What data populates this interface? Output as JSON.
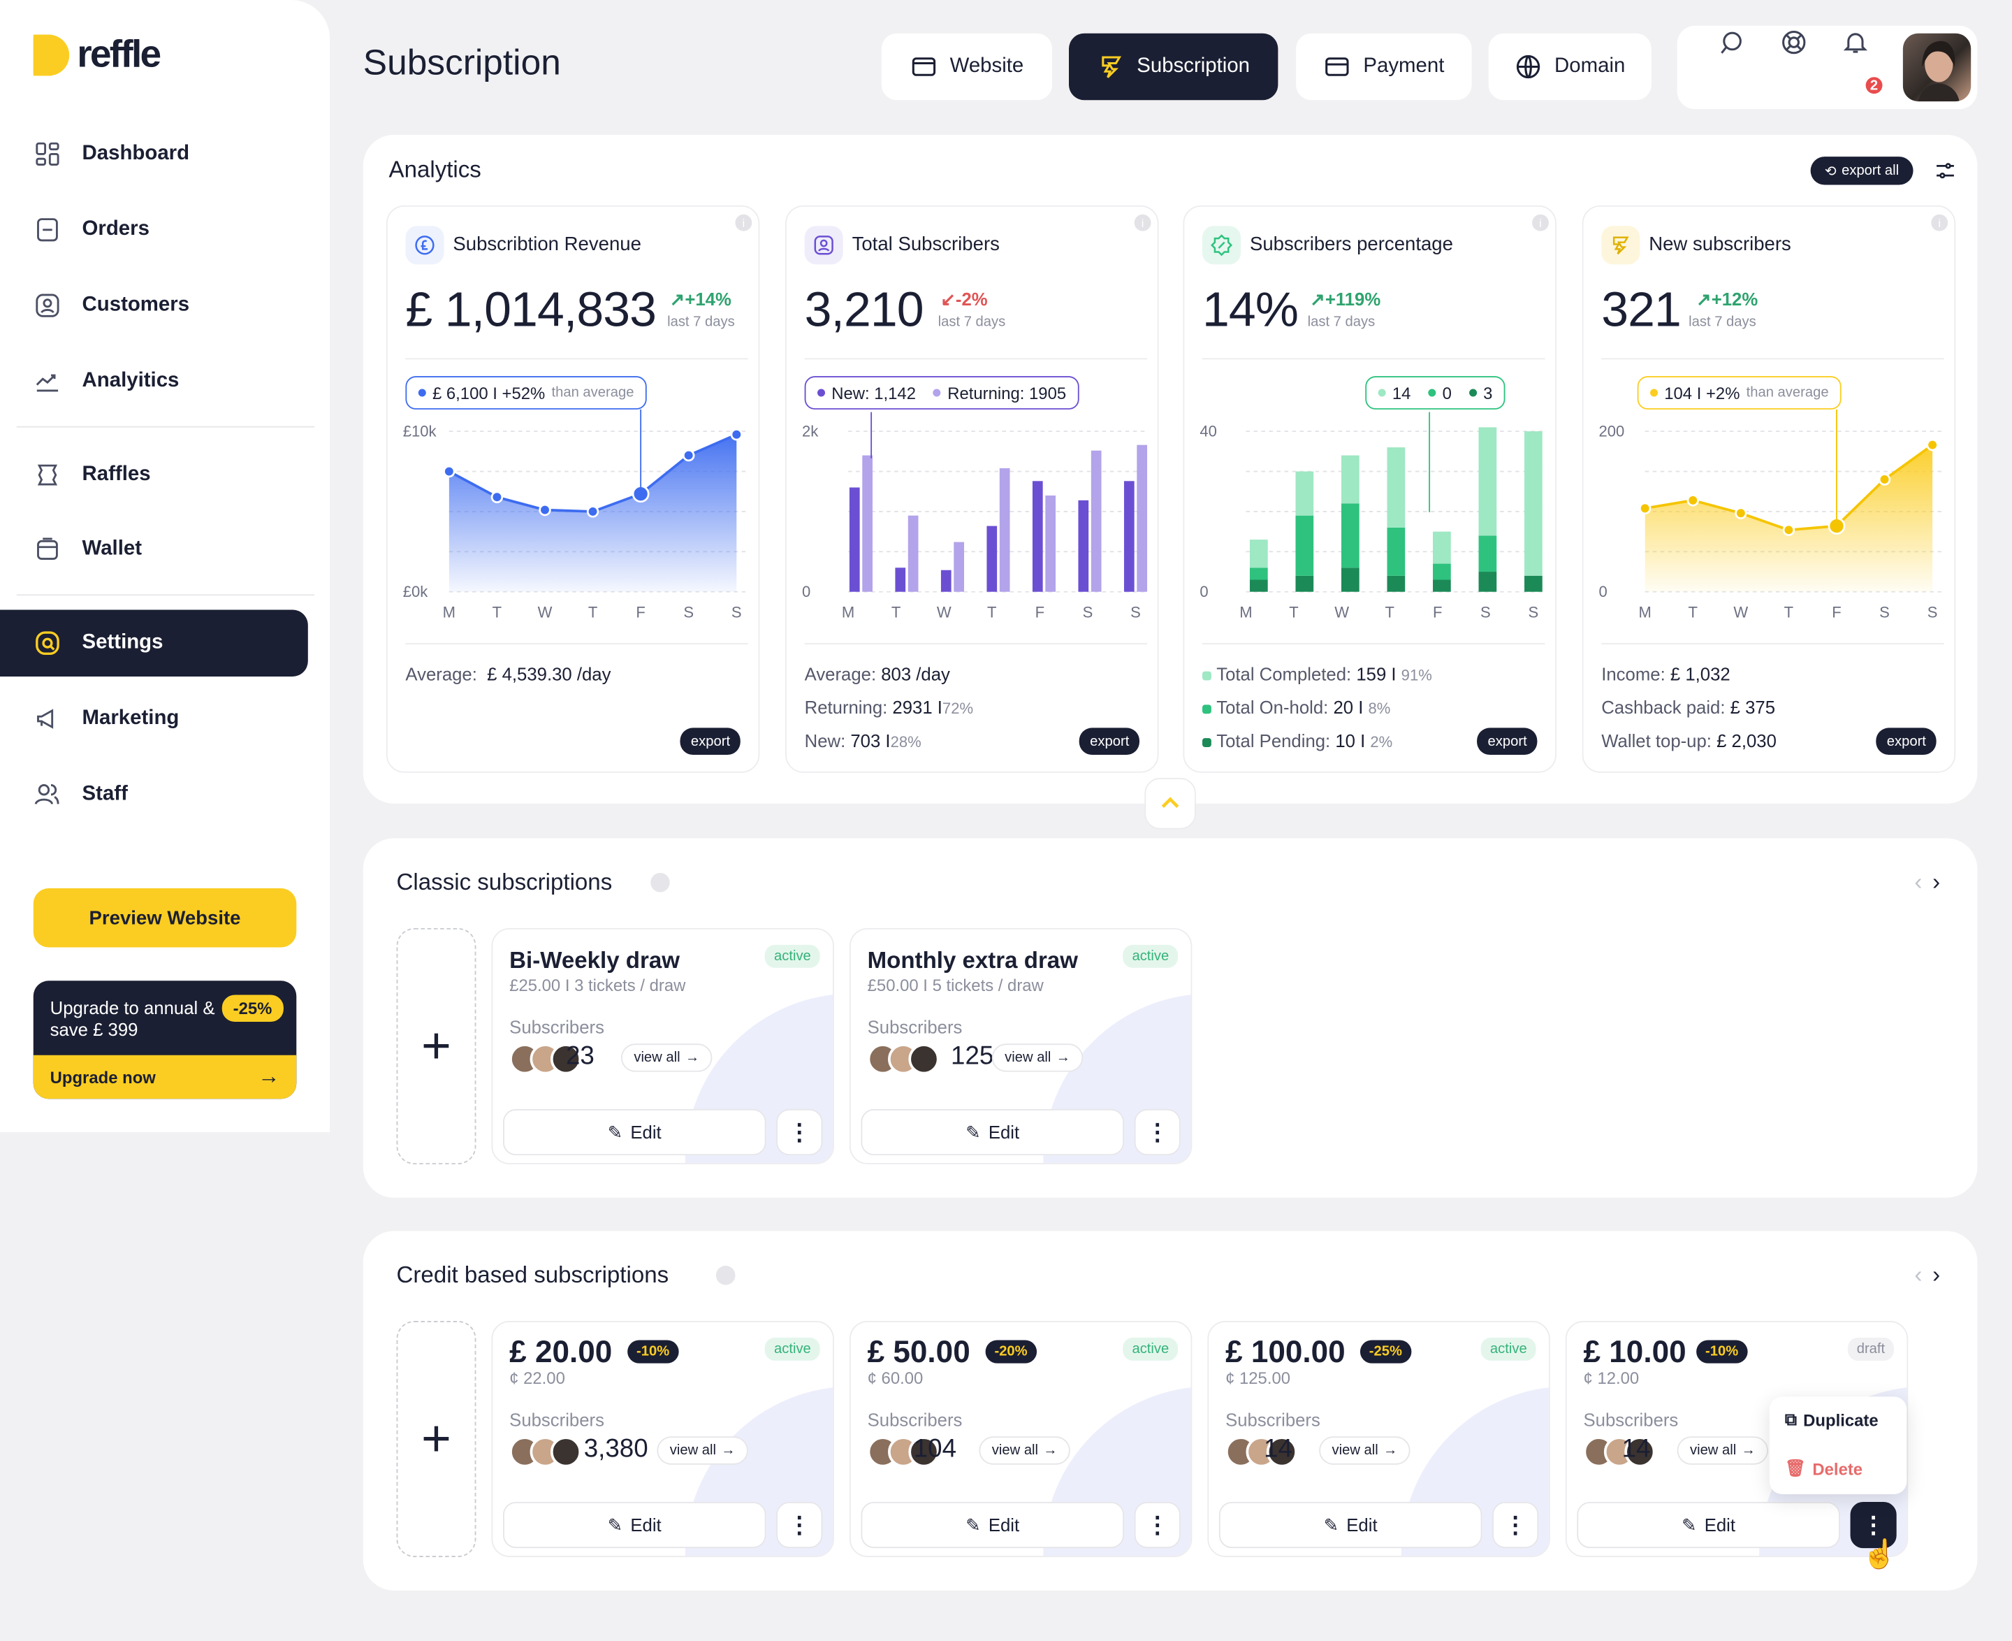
{
  "brand": {
    "name": "reffle"
  },
  "nav": {
    "items": [
      "Dashboard",
      "Orders",
      "Customers",
      "Analyitics",
      "Raffles",
      "Wallet",
      "Settings",
      "Marketing",
      "Staff"
    ],
    "active": "Settings"
  },
  "sidebar": {
    "preview": "Preview Website",
    "upgrade_text": "Upgrade to annual & save £ 399",
    "upgrade_badge": "-25%",
    "upgrade_cta": "Upgrade now"
  },
  "header": {
    "title": "Subscription",
    "tabs": [
      "Website",
      "Subscription",
      "Payment",
      "Domain"
    ],
    "active_tab": "Subscription",
    "notifications": "2"
  },
  "analytics": {
    "title": "Analytics",
    "export_all": "export all",
    "export": "export",
    "cards": [
      {
        "title": "Subscribtion Revenue",
        "value": "£ 1,014,833",
        "change": "+14%",
        "period": "last 7 days",
        "tooltip_value": "£ 6,100 I +52%",
        "tooltip_suffix": "than average",
        "stat1_label": "Average:",
        "stat1_value": "£ 4,539.30 /day"
      },
      {
        "title": "Total Subscribers",
        "value": "3,210",
        "change": "-2%",
        "period": "last 7 days",
        "legend_new": "New: 1,142",
        "legend_ret": "Returning: 1905",
        "avg_label": "Average:",
        "avg_value": "803 /day",
        "ret_label": "Returning:",
        "ret_value": "2931 I",
        "ret_pct": "72%",
        "new_label": "New:",
        "new_value": "703 I",
        "new_pct": "28%"
      },
      {
        "title": "Subscribers percentage",
        "value": "14%",
        "change": "+119%",
        "period": "last 7 days",
        "leg_a": "14",
        "leg_b": "0",
        "leg_c": "3",
        "tc_label": "Total Completed:",
        "tc_value": "159 I",
        "tc_pct": "91%",
        "th_label": "Total On-hold:",
        "th_value": "20 I",
        "th_pct": "8%",
        "tp_label": "Total Pending:",
        "tp_value": "10 I",
        "tp_pct": "2%"
      },
      {
        "title": "New subscribers",
        "value": "321",
        "change": "+12%",
        "period": "last 7 days",
        "tooltip_value": "104 I +2%",
        "tooltip_suffix": "than average",
        "inc_label": "Income:",
        "inc_value": "£ 1,032",
        "cb_label": "Cashback paid:",
        "cb_value": "£ 375",
        "wt_label": "Wallet top-up:",
        "wt_value": "£ 2,030"
      }
    ]
  },
  "chart_data": [
    {
      "type": "area",
      "title": "Subscribtion Revenue",
      "x": [
        "M",
        "T",
        "W",
        "T",
        "F",
        "S",
        "S"
      ],
      "values": [
        7500,
        5900,
        5100,
        5000,
        6100,
        8500,
        9800
      ],
      "ylim": [
        0,
        10000
      ],
      "ytick_labels": [
        "£10k",
        "£0k"
      ]
    },
    {
      "type": "bar",
      "title": "Total Subscribers",
      "categories": [
        "M",
        "T",
        "W",
        "T",
        "F",
        "S",
        "S"
      ],
      "series": [
        {
          "name": "New",
          "values": [
            1300,
            300,
            270,
            820,
            1380,
            1140,
            1380
          ]
        },
        {
          "name": "Returning",
          "values": [
            1700,
            950,
            620,
            1540,
            1200,
            1760,
            1830
          ]
        }
      ],
      "ylim": [
        0,
        2000
      ],
      "ytick_labels": [
        "2k",
        "0"
      ]
    },
    {
      "type": "bar",
      "title": "Subscribers percentage",
      "categories": [
        "M",
        "T",
        "W",
        "T",
        "F",
        "S",
        "S"
      ],
      "series": [
        {
          "name": "",
          "values": [
            3,
            4,
            6,
            4,
            3,
            5,
            4
          ]
        },
        {
          "name": "",
          "values": [
            3,
            15,
            16,
            12,
            4,
            9,
            0
          ]
        },
        {
          "name": "",
          "values": [
            7,
            11,
            12,
            20,
            8,
            27,
            36
          ]
        }
      ],
      "ylim": [
        0,
        40
      ],
      "ytick_labels": [
        "40",
        "0"
      ]
    },
    {
      "type": "area",
      "title": "New subscribers",
      "x": [
        "M",
        "T",
        "W",
        "T",
        "F",
        "S",
        "S"
      ],
      "values": [
        104,
        114,
        98,
        77,
        82,
        140,
        183
      ],
      "ylim": [
        0,
        200
      ],
      "ytick_labels": [
        "200",
        "0"
      ]
    }
  ],
  "classic": {
    "title": "Classic subscriptions",
    "items": [
      {
        "name": "Bi-Weekly draw",
        "sub": "£25.00 I 3 tickets / draw",
        "status": "active",
        "subs_label": "Subscribers",
        "count": "23",
        "view": "view all",
        "edit": "Edit"
      },
      {
        "name": "Monthly extra draw",
        "sub": "£50.00 I 5 tickets / draw",
        "status": "active",
        "subs_label": "Subscribers",
        "count": "125",
        "view": "view all",
        "edit": "Edit"
      }
    ]
  },
  "credit": {
    "title": "Credit based subscriptions",
    "items": [
      {
        "price": "£ 20.00",
        "disc": "-10%",
        "sub": "¢ 22.00",
        "status": "active",
        "subs_label": "Subscribers",
        "count": "3,380",
        "view": "view all",
        "edit": "Edit"
      },
      {
        "price": "£ 50.00",
        "disc": "-20%",
        "sub": "¢ 60.00",
        "status": "active",
        "subs_label": "Subscribers",
        "count": "104",
        "view": "view all",
        "edit": "Edit"
      },
      {
        "price": "£ 100.00",
        "disc": "-25%",
        "sub": "¢ 125.00",
        "status": "active",
        "subs_label": "Subscribers",
        "count": "14",
        "view": "view all",
        "edit": "Edit"
      },
      {
        "price": "£ 10.00",
        "disc": "-10%",
        "sub": "¢ 12.00",
        "status": "draft",
        "subs_label": "Subscribers",
        "count": "14",
        "view": "view all",
        "edit": "Edit"
      }
    ],
    "menu": {
      "duplicate": "Duplicate",
      "delete": "Delete"
    }
  },
  "colors": {
    "navy": "#1b1f33",
    "yellow": "#fbcd22",
    "blue": "#3d6cf0",
    "purple": "#6b4fd3",
    "green": "#2ec27e"
  }
}
